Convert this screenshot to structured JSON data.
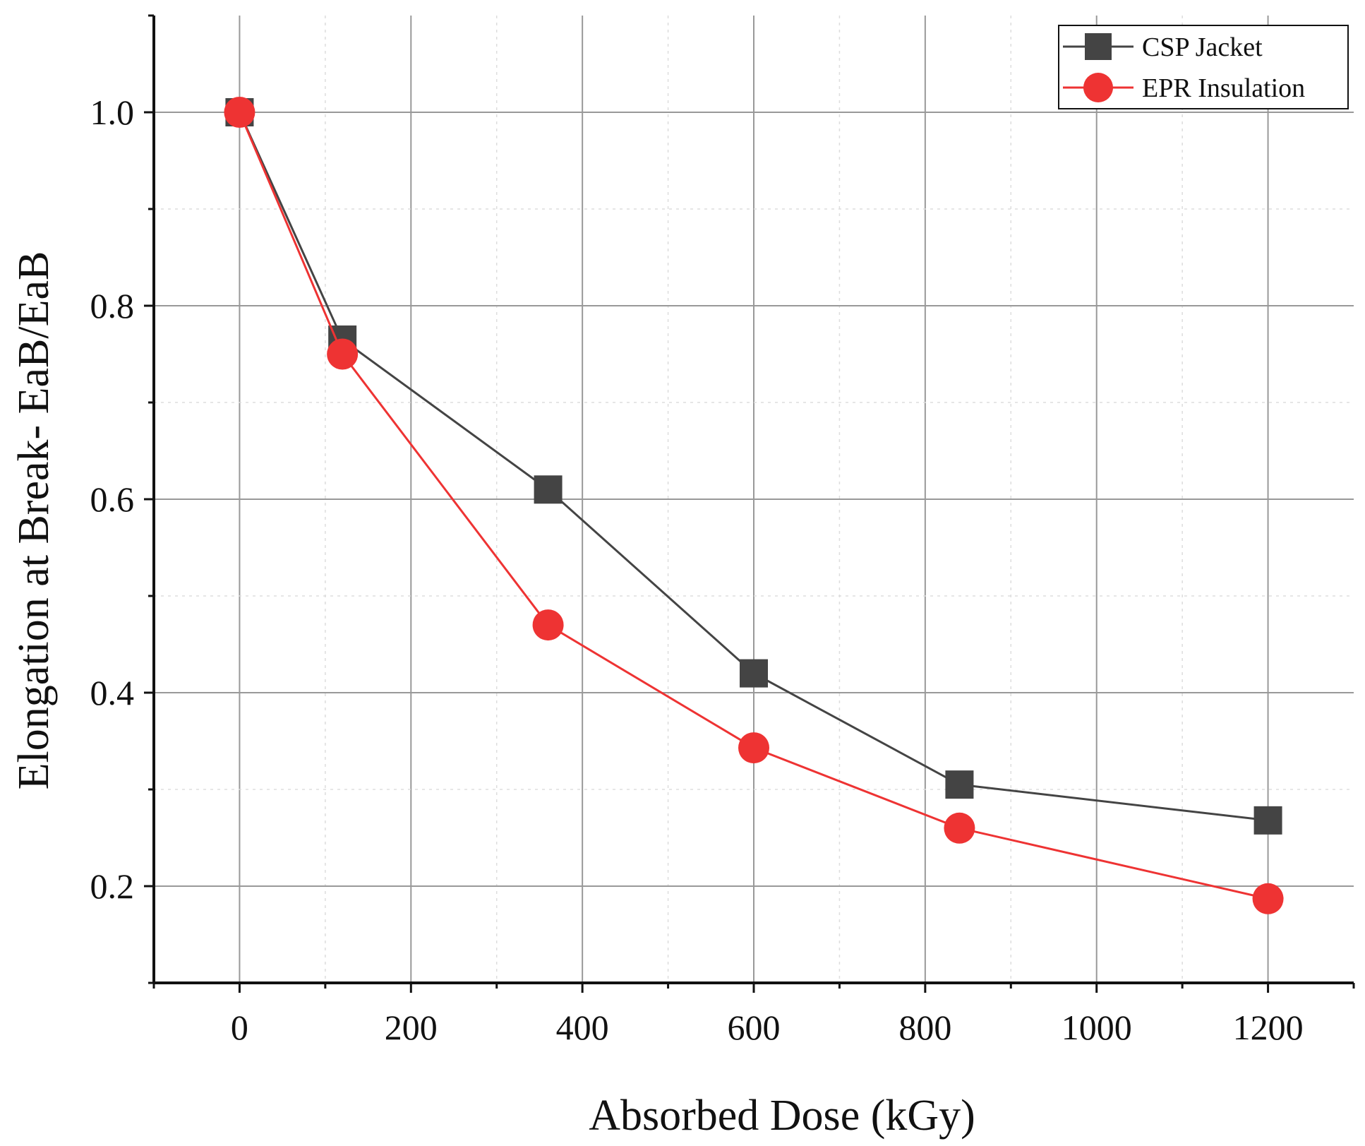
{
  "chart_data": {
    "type": "line",
    "title": "",
    "xlabel": "Absorbed Dose (kGy)",
    "ylabel": "Elongation at Break- EaB/EaB",
    "xlim": [
      -100,
      1300
    ],
    "ylim": [
      0.1,
      1.1
    ],
    "xticks": [
      0,
      200,
      400,
      600,
      800,
      1000,
      1200
    ],
    "xtick_labels": [
      "0",
      "200",
      "400",
      "600",
      "800",
      "1000",
      "1200"
    ],
    "yticks": [
      0.2,
      0.4,
      0.6,
      0.8,
      1.0
    ],
    "ytick_labels": [
      "0.2",
      "0.4",
      "0.6",
      "0.8",
      "1.0"
    ],
    "grid": true,
    "legend_position": "top-right",
    "series": [
      {
        "name": "CSP Jacket",
        "marker": "square",
        "color": "#444444",
        "x": [
          0,
          120,
          360,
          600,
          840,
          1200
        ],
        "y": [
          1.0,
          0.765,
          0.61,
          0.42,
          0.305,
          0.268
        ]
      },
      {
        "name": "EPR Insulation",
        "marker": "circle",
        "color": "#ee3333",
        "x": [
          0,
          120,
          360,
          600,
          840,
          1200
        ],
        "y": [
          1.0,
          0.75,
          0.47,
          0.343,
          0.26,
          0.187
        ]
      }
    ]
  }
}
